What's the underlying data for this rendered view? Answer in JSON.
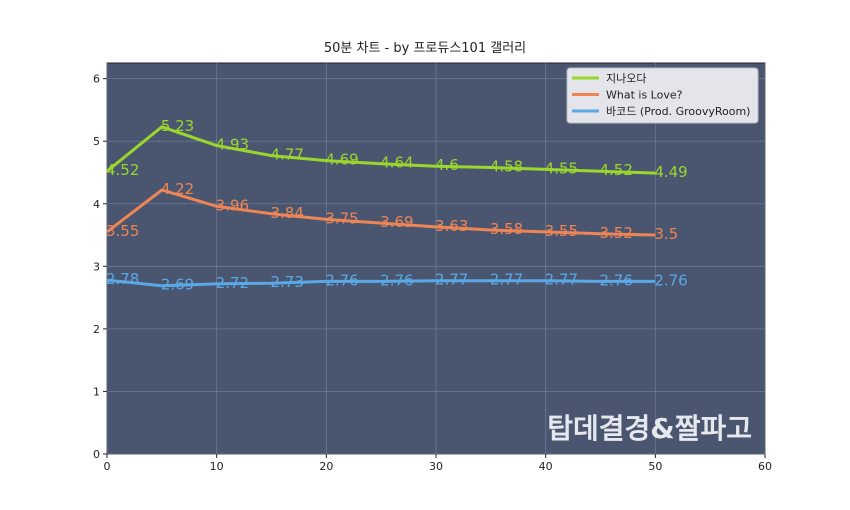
{
  "chart_data": {
    "type": "line",
    "title": "50분 차트 - by 프로듀스101 갤러리",
    "xlabel": "",
    "ylabel": "",
    "xlim": [
      0,
      60
    ],
    "ylim": [
      0,
      6.25
    ],
    "x_ticks": [
      0,
      10,
      20,
      30,
      40,
      50,
      60
    ],
    "y_ticks": [
      0,
      1,
      2,
      3,
      4,
      5,
      6
    ],
    "grid": true,
    "legend_position": "top-right",
    "plot_background": "#4a5670",
    "x": [
      0,
      5,
      10,
      15,
      20,
      25,
      30,
      35,
      40,
      45,
      50
    ],
    "series": [
      {
        "name": "지나오다",
        "color": "#9ad62c",
        "values": [
          4.52,
          5.23,
          4.93,
          4.77,
          4.69,
          4.64,
          4.6,
          4.58,
          4.55,
          4.52,
          4.49
        ],
        "labels": [
          "4.52",
          "5.23",
          "4.93",
          "4.77",
          "4.69",
          "4.64",
          "4.6",
          "4.58",
          "4.55",
          "4.52",
          "4.49"
        ]
      },
      {
        "name": "What is Love?",
        "color": "#ee8555",
        "values": [
          3.55,
          4.22,
          3.96,
          3.84,
          3.75,
          3.69,
          3.63,
          3.58,
          3.55,
          3.52,
          3.5
        ],
        "labels": [
          "3.55",
          "4.22",
          "3.96",
          "3.84",
          "3.75",
          "3.69",
          "3.63",
          "3.58",
          "3.55",
          "3.52",
          "3.5"
        ]
      },
      {
        "name": "바코드 (Prod. GroovyRoom)",
        "color": "#5aa9e6",
        "values": [
          2.78,
          2.69,
          2.72,
          2.73,
          2.76,
          2.76,
          2.77,
          2.77,
          2.77,
          2.76,
          2.76
        ],
        "labels": [
          "2.78",
          "2.69",
          "2.72",
          "2.73",
          "2.76",
          "2.76",
          "2.77",
          "2.77",
          "2.77",
          "2.76",
          "2.76"
        ]
      }
    ],
    "watermark": "탑데결경&짤파고"
  }
}
